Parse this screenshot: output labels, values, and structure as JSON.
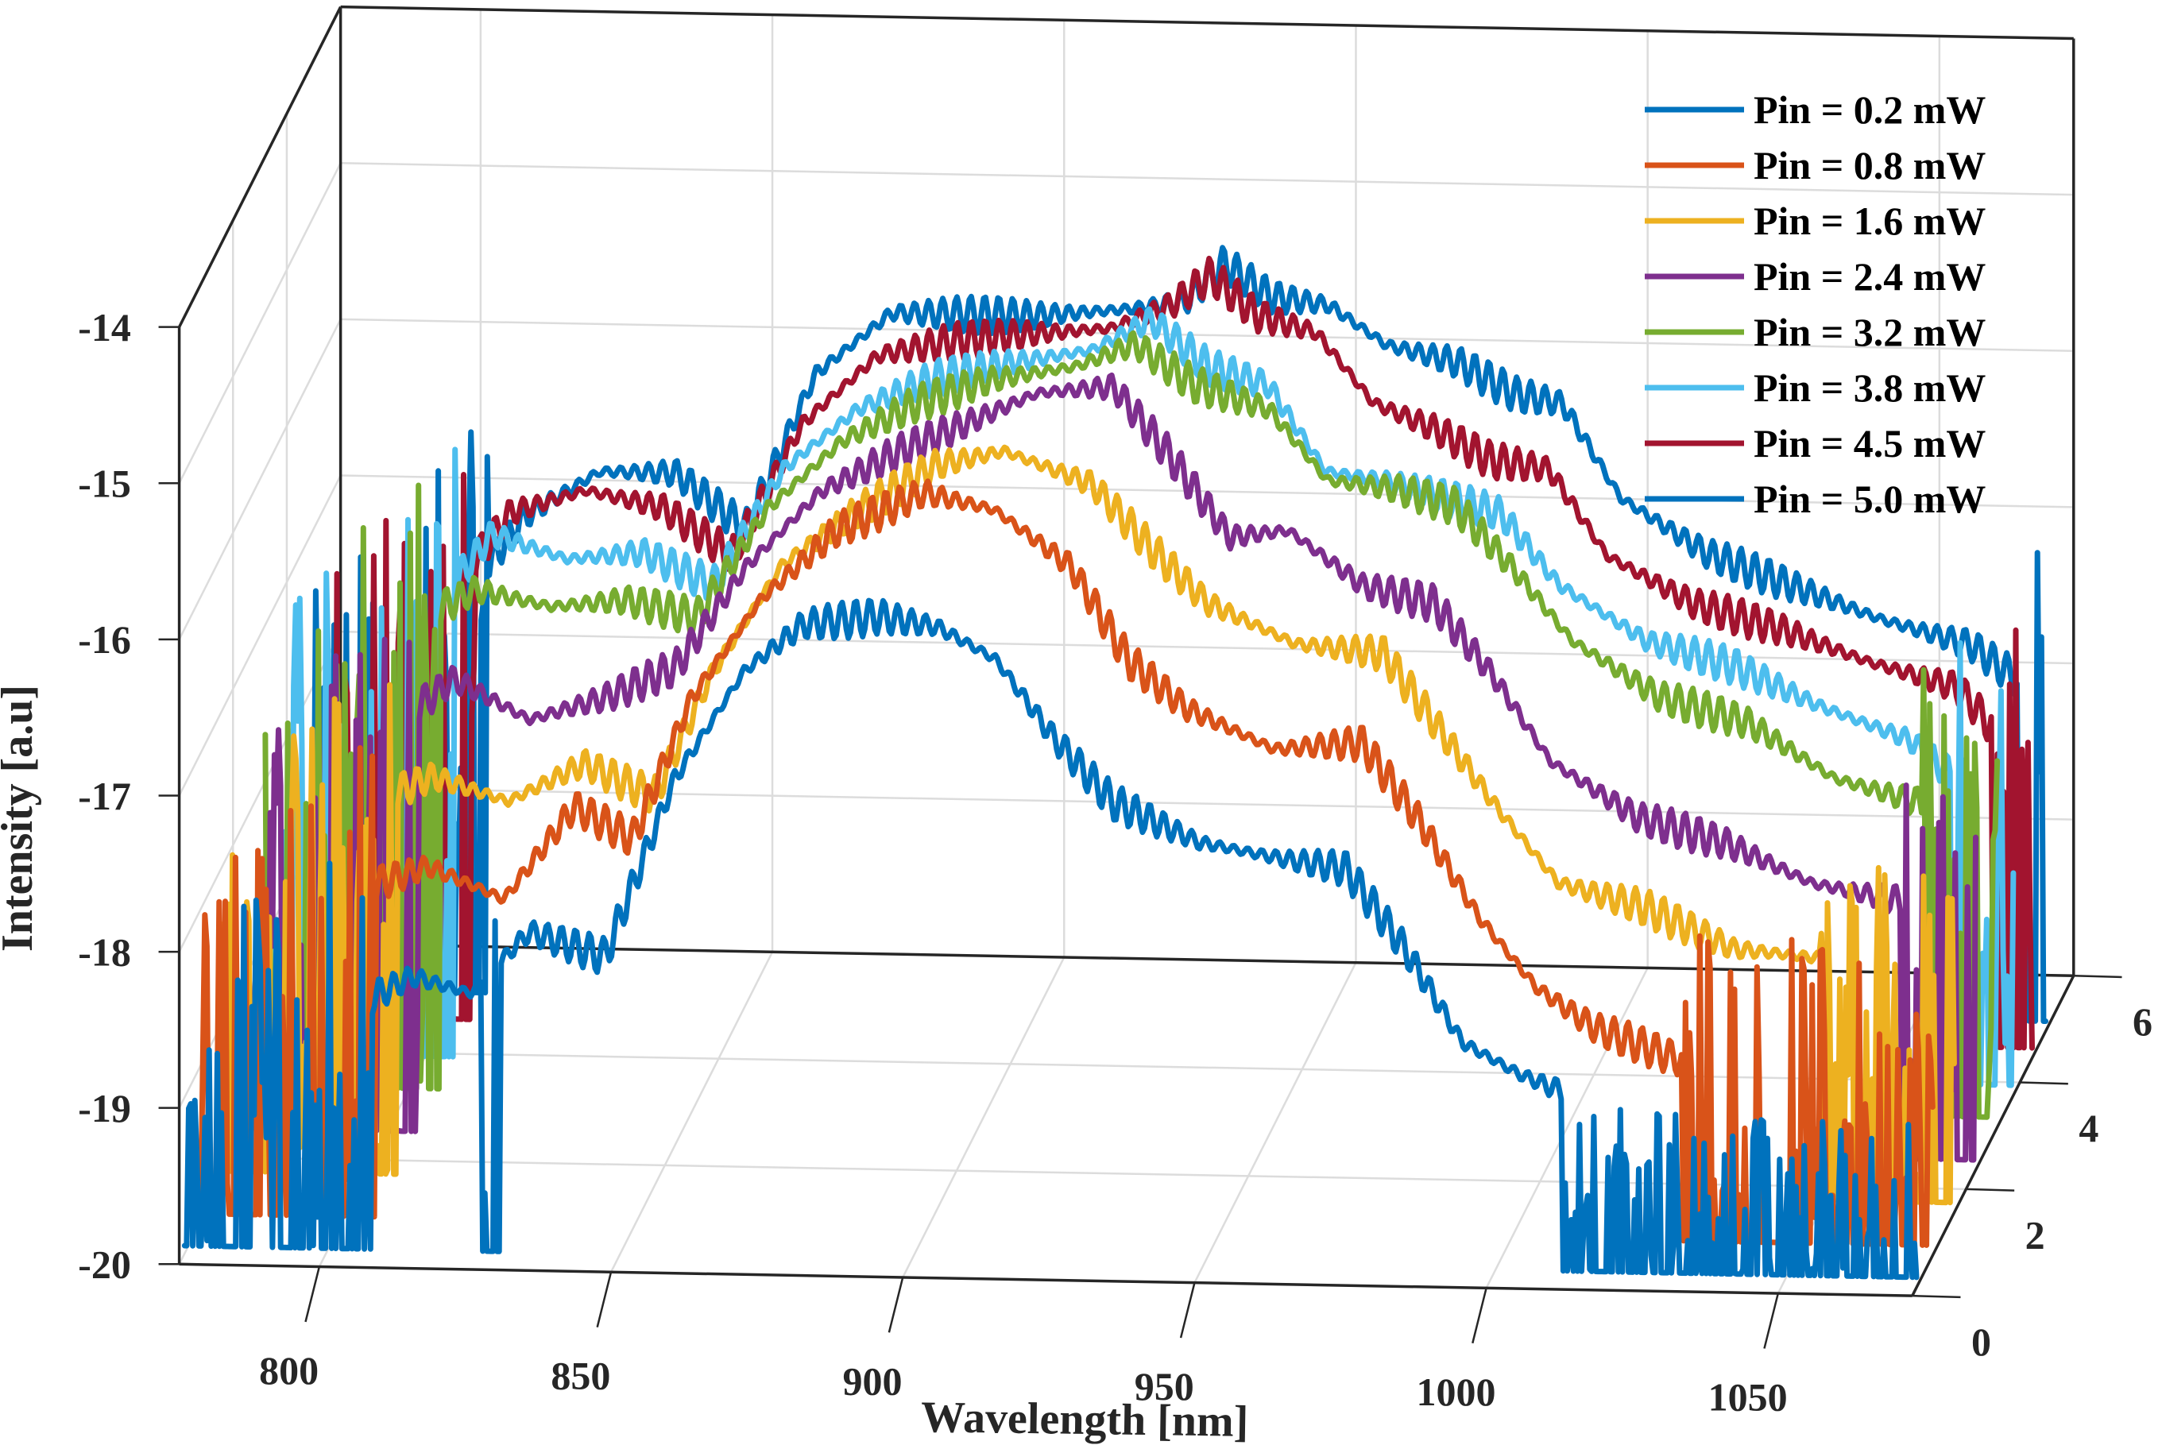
{
  "chart_data": {
    "type": "line",
    "projection": "3d",
    "title": "",
    "xlabel": "Wavelength [nm]",
    "ylabel": "Intensity [a.u]",
    "zlabel": "",
    "xlim": [
      776,
      1073
    ],
    "ylim": [
      -20,
      -14
    ],
    "zlim": [
      0,
      6
    ],
    "xticks": [
      800,
      850,
      900,
      950,
      1000,
      1050
    ],
    "yticks": [
      -20,
      -19,
      -18,
      -17,
      -16,
      -15,
      -14
    ],
    "zticks": [
      0,
      2,
      4,
      6
    ],
    "xtick_labels": [
      "800",
      "850",
      "900",
      "950",
      "1000",
      "1050"
    ],
    "ytick_labels": [
      "-20",
      "-19",
      "-18",
      "-17",
      "-16",
      "-15",
      "-14"
    ],
    "ztick_labels": [
      "0",
      "2",
      "4",
      "6"
    ],
    "grid": true,
    "legend_position": "top-right",
    "ripple_amplitude": 0.12,
    "ripple_period_nm": 2.4,
    "noise_floor": -19.95,
    "series": [
      {
        "name": "Pin = 0.2 mW",
        "z": 0.2,
        "color": "#0072BD",
        "points": [
          [
            776,
            -19.9
          ],
          [
            790,
            -18.3
          ],
          [
            805,
            -18.4
          ],
          [
            815,
            -18.2
          ],
          [
            825,
            -18.3
          ],
          [
            835,
            -17.9
          ],
          [
            848,
            -18.05
          ],
          [
            860,
            -16.9
          ],
          [
            872,
            -16.2
          ],
          [
            882,
            -15.9
          ],
          [
            895,
            -15.84
          ],
          [
            905,
            -15.9
          ],
          [
            915,
            -16.1
          ],
          [
            925,
            -16.6
          ],
          [
            935,
            -17.0
          ],
          [
            950,
            -17.25
          ],
          [
            965,
            -17.35
          ],
          [
            975,
            -17.4
          ],
          [
            985,
            -17.9
          ],
          [
            995,
            -18.5
          ],
          [
            1005,
            -18.7
          ],
          [
            1012,
            -18.8
          ],
          [
            1013,
            -19.9
          ],
          [
            1073,
            -19.9
          ]
        ],
        "noisy_ranges": [
          [
            776,
            808
          ],
          [
            827,
            830
          ],
          [
            1012,
            1073
          ]
        ]
      },
      {
        "name": "Pin = 0.8 mW",
        "z": 0.8,
        "color": "#D95319",
        "points": [
          [
            776,
            -18.8
          ],
          [
            800,
            -17.9
          ],
          [
            815,
            -17.7
          ],
          [
            828,
            -17.9
          ],
          [
            840,
            -17.3
          ],
          [
            850,
            -17.5
          ],
          [
            860,
            -16.6
          ],
          [
            872,
            -15.95
          ],
          [
            885,
            -15.5
          ],
          [
            900,
            -15.25
          ],
          [
            912,
            -15.35
          ],
          [
            925,
            -15.7
          ],
          [
            935,
            -16.3
          ],
          [
            945,
            -16.6
          ],
          [
            960,
            -16.85
          ],
          [
            975,
            -16.8
          ],
          [
            985,
            -17.3
          ],
          [
            995,
            -17.9
          ],
          [
            1005,
            -18.35
          ],
          [
            1015,
            -18.6
          ],
          [
            1030,
            -18.8
          ],
          [
            1073,
            -19.2
          ]
        ],
        "noisy_ranges": [
          [
            776,
            806
          ],
          [
            1030,
            1073
          ]
        ]
      },
      {
        "name": "Pin = 1.6 mW",
        "z": 1.6,
        "color": "#EDB120",
        "points": [
          [
            776,
            -18.5
          ],
          [
            800,
            -17.6
          ],
          [
            812,
            -17.4
          ],
          [
            825,
            -17.55
          ],
          [
            838,
            -17.3
          ],
          [
            850,
            -17.5
          ],
          [
            860,
            -16.7
          ],
          [
            872,
            -16.0
          ],
          [
            885,
            -15.65
          ],
          [
            898,
            -15.35
          ],
          [
            910,
            -15.25
          ],
          [
            925,
            -15.45
          ],
          [
            935,
            -15.85
          ],
          [
            945,
            -16.2
          ],
          [
            960,
            -16.45
          ],
          [
            975,
            -16.5
          ],
          [
            985,
            -17.0
          ],
          [
            995,
            -17.5
          ],
          [
            1005,
            -17.95
          ],
          [
            1020,
            -18.1
          ],
          [
            1035,
            -18.35
          ],
          [
            1050,
            -18.4
          ],
          [
            1073,
            -18.9
          ]
        ],
        "noisy_ranges": [
          [
            776,
            806
          ],
          [
            1050,
            1073
          ]
        ]
      },
      {
        "name": "Pin = 2.4 mW",
        "z": 2.4,
        "color": "#7E2F8E",
        "points": [
          [
            776,
            -18.3
          ],
          [
            800,
            -17.4
          ],
          [
            812,
            -17.05
          ],
          [
            825,
            -17.3
          ],
          [
            838,
            -17.15
          ],
          [
            850,
            -16.95
          ],
          [
            862,
            -16.3
          ],
          [
            875,
            -15.8
          ],
          [
            888,
            -15.55
          ],
          [
            900,
            -15.35
          ],
          [
            912,
            -15.15
          ],
          [
            925,
            -15.1
          ],
          [
            935,
            -15.55
          ],
          [
            945,
            -16.05
          ],
          [
            955,
            -16.0
          ],
          [
            968,
            -16.35
          ],
          [
            980,
            -16.45
          ],
          [
            990,
            -16.9
          ],
          [
            1000,
            -17.45
          ],
          [
            1015,
            -17.8
          ],
          [
            1030,
            -17.95
          ],
          [
            1045,
            -18.2
          ],
          [
            1060,
            -18.3
          ],
          [
            1073,
            -18.8
          ]
        ],
        "noisy_ranges": [
          [
            776,
            806
          ],
          [
            1060,
            1073
          ]
        ]
      },
      {
        "name": "Pin = 3.2 mW",
        "z": 3.2,
        "color": "#77AC30",
        "points": [
          [
            776,
            -18.2
          ],
          [
            800,
            -17.0
          ],
          [
            812,
            -16.75
          ],
          [
            825,
            -16.85
          ],
          [
            838,
            -16.8
          ],
          [
            850,
            -16.9
          ],
          [
            862,
            -16.2
          ],
          [
            875,
            -15.75
          ],
          [
            888,
            -15.5
          ],
          [
            900,
            -15.35
          ],
          [
            915,
            -15.25
          ],
          [
            925,
            -15.1
          ],
          [
            935,
            -15.35
          ],
          [
            948,
            -15.5
          ],
          [
            958,
            -15.95
          ],
          [
            970,
            -16.0
          ],
          [
            980,
            -16.1
          ],
          [
            990,
            -16.5
          ],
          [
            1000,
            -16.95
          ],
          [
            1015,
            -17.3
          ],
          [
            1030,
            -17.45
          ],
          [
            1045,
            -17.8
          ],
          [
            1060,
            -17.95
          ],
          [
            1073,
            -18.6
          ]
        ],
        "noisy_ranges": [
          [
            776,
            806
          ],
          [
            1060,
            1073
          ]
        ]
      },
      {
        "name": "Pin = 3.8 mW",
        "z": 3.8,
        "color": "#4DBEEE",
        "points": [
          [
            776,
            -18.1
          ],
          [
            800,
            -17.2
          ],
          [
            812,
            -16.6
          ],
          [
            825,
            -16.75
          ],
          [
            838,
            -16.7
          ],
          [
            850,
            -16.9
          ],
          [
            862,
            -16.15
          ],
          [
            875,
            -15.75
          ],
          [
            888,
            -15.55
          ],
          [
            900,
            -15.45
          ],
          [
            915,
            -15.35
          ],
          [
            925,
            -15.15
          ],
          [
            935,
            -15.45
          ],
          [
            945,
            -15.55
          ],
          [
            955,
            -16.1
          ],
          [
            965,
            -16.15
          ],
          [
            975,
            -16.25
          ],
          [
            985,
            -16.35
          ],
          [
            995,
            -16.8
          ],
          [
            1010,
            -17.15
          ],
          [
            1025,
            -17.3
          ],
          [
            1040,
            -17.55
          ],
          [
            1055,
            -17.75
          ],
          [
            1073,
            -18.3
          ]
        ],
        "noisy_ranges": [
          [
            776,
            806
          ],
          [
            1062,
            1073
          ]
        ]
      },
      {
        "name": "Pin = 4.5 mW",
        "z": 4.5,
        "color": "#A2142F",
        "points": [
          [
            776,
            -18.3
          ],
          [
            800,
            -17.3
          ],
          [
            812,
            -16.7
          ],
          [
            825,
            -16.55
          ],
          [
            838,
            -16.65
          ],
          [
            850,
            -16.95
          ],
          [
            862,
            -16.1
          ],
          [
            875,
            -15.65
          ],
          [
            888,
            -15.55
          ],
          [
            900,
            -15.5
          ],
          [
            915,
            -15.45
          ],
          [
            925,
            -15.3
          ],
          [
            932,
            -15.1
          ],
          [
            940,
            -15.35
          ],
          [
            950,
            -15.45
          ],
          [
            960,
            -15.9
          ],
          [
            970,
            -16.05
          ],
          [
            980,
            -16.25
          ],
          [
            990,
            -16.3
          ],
          [
            1000,
            -16.85
          ],
          [
            1015,
            -17.15
          ],
          [
            1030,
            -17.3
          ],
          [
            1045,
            -17.5
          ],
          [
            1060,
            -17.65
          ],
          [
            1073,
            -18.2
          ]
        ],
        "noisy_ranges": [
          [
            776,
            806
          ],
          [
            1066,
            1073
          ]
        ]
      },
      {
        "name": "Pin = 5.0 mW",
        "z": 5.0,
        "color": "#0072BD",
        "points": [
          [
            776,
            -18.4
          ],
          [
            800,
            -17.5
          ],
          [
            812,
            -16.9
          ],
          [
            825,
            -16.6
          ],
          [
            838,
            -16.6
          ],
          [
            850,
            -16.95
          ],
          [
            862,
            -15.95
          ],
          [
            875,
            -15.55
          ],
          [
            888,
            -15.55
          ],
          [
            900,
            -15.55
          ],
          [
            915,
            -15.5
          ],
          [
            925,
            -15.45
          ],
          [
            932,
            -15.2
          ],
          [
            940,
            -15.4
          ],
          [
            950,
            -15.45
          ],
          [
            960,
            -15.7
          ],
          [
            972,
            -15.8
          ],
          [
            982,
            -16.0
          ],
          [
            990,
            -16.05
          ],
          [
            1000,
            -16.65
          ],
          [
            1015,
            -17.0
          ],
          [
            1030,
            -17.2
          ],
          [
            1045,
            -17.4
          ],
          [
            1060,
            -17.55
          ],
          [
            1073,
            -17.9
          ]
        ],
        "noisy_ranges": [
          [
            776,
            806
          ],
          [
            1068,
            1073
          ]
        ]
      }
    ]
  }
}
